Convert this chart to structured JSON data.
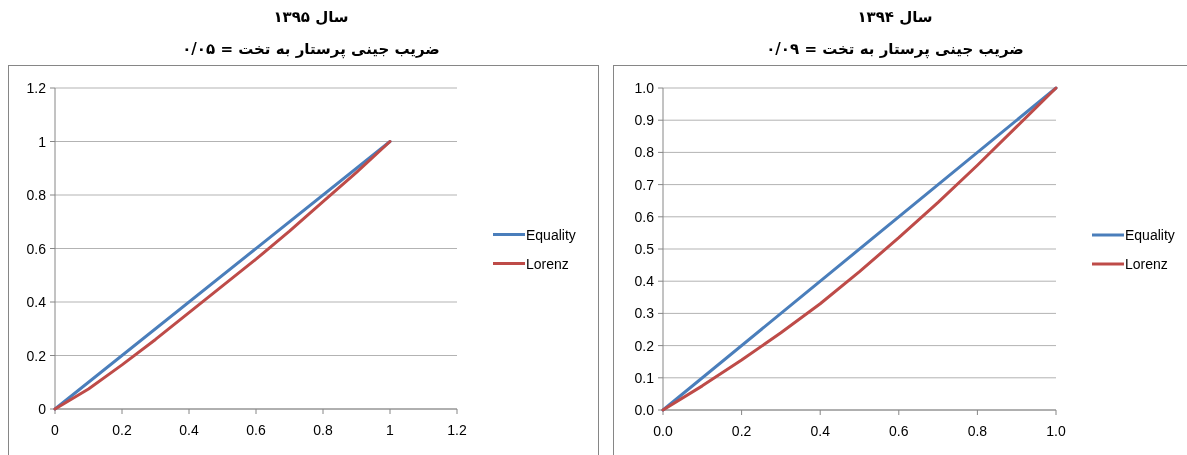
{
  "chart_data": [
    {
      "type": "line",
      "title": "سال ۱۳۹۵",
      "subtitle": "ضریب جینی پرستار به تخت = ۰/۰۵",
      "xlim": [
        0,
        1.2
      ],
      "xticks": [
        0,
        0.2,
        0.4,
        0.6,
        0.8,
        1,
        1.2
      ],
      "ylim": [
        0,
        1.2
      ],
      "yticks": [
        0,
        0.2,
        0.4,
        0.6,
        0.8,
        1,
        1.2
      ],
      "grid": "y",
      "legend": "right",
      "series": [
        {
          "name": "Equality",
          "color": "#4a7ebb",
          "x": [
            0,
            1
          ],
          "values": [
            0,
            1
          ]
        },
        {
          "name": "Lorenz",
          "color": "#be4b48",
          "x": [
            0,
            0.1,
            0.2,
            0.3,
            0.4,
            0.5,
            0.6,
            0.7,
            0.8,
            0.9,
            1
          ],
          "values": [
            0,
            0.075,
            0.165,
            0.26,
            0.36,
            0.46,
            0.56,
            0.665,
            0.775,
            0.885,
            1
          ]
        }
      ]
    },
    {
      "type": "line",
      "title": "سال ۱۳۹۴",
      "subtitle": "ضریب جینی پرستار به تخت = ۰/۰۹",
      "xlim": [
        0,
        1
      ],
      "xticks": [
        {
          "value": 0,
          "label": "0.0"
        },
        0.2,
        0.4,
        0.6,
        0.8,
        {
          "value": 1,
          "label": "1.0"
        }
      ],
      "ylim": [
        0,
        1
      ],
      "yticks": [
        {
          "value": 0,
          "label": "0.0"
        },
        0.1,
        0.2,
        0.3,
        0.4,
        0.5,
        0.6,
        0.7,
        0.8,
        0.9,
        {
          "value": 1,
          "label": "1.0"
        }
      ],
      "grid": "y",
      "legend": "right",
      "series": [
        {
          "name": "Equality",
          "color": "#4a7ebb",
          "x": [
            0,
            1
          ],
          "values": [
            0,
            1
          ]
        },
        {
          "name": "Lorenz",
          "color": "#be4b48",
          "x": [
            0,
            0.1,
            0.2,
            0.3,
            0.4,
            0.5,
            0.6,
            0.7,
            0.8,
            0.9,
            1
          ],
          "values": [
            0,
            0.075,
            0.155,
            0.24,
            0.33,
            0.43,
            0.535,
            0.645,
            0.76,
            0.88,
            1
          ]
        }
      ]
    }
  ]
}
